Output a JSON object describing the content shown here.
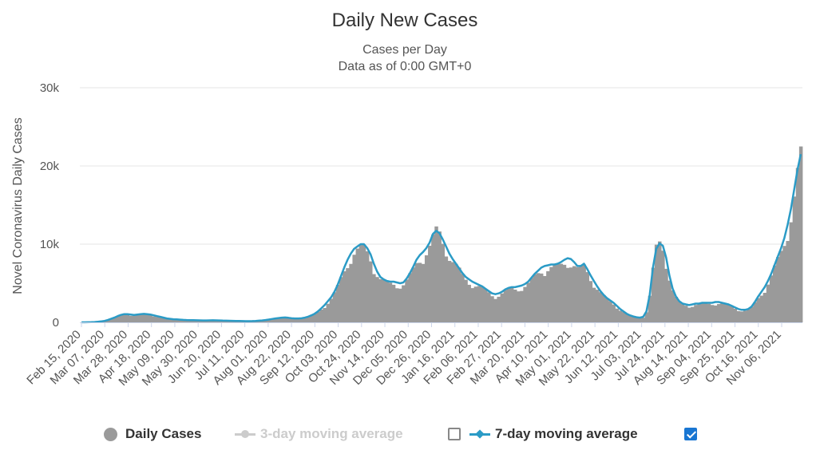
{
  "chart_data": {
    "type": "bar",
    "title": "Daily New Cases",
    "subtitle": "Cases per Day",
    "subtitle2": "Data as of 0:00 GMT+0",
    "ylabel": "Novel Coronavirus Daily Cases",
    "xlabel": "",
    "ylim": [
      0,
      30000
    ],
    "yticks": [
      0,
      10000,
      20000,
      30000
    ],
    "ytick_labels": [
      "0",
      "10k",
      "20k",
      "30k"
    ],
    "x_tick_labels": [
      "Feb 15, 2020",
      "Mar 07, 2020",
      "Mar 28, 2020",
      "Apr 18, 2020",
      "May 09, 2020",
      "May 30, 2020",
      "Jun 20, 2020",
      "Jul 11, 2020",
      "Aug 01, 2020",
      "Aug 22, 2020",
      "Sep 12, 2020",
      "Oct 03, 2020",
      "Oct 24, 2020",
      "Nov 14, 2020",
      "Dec 05, 2020",
      "Dec 26, 2020",
      "Jan 16, 2021",
      "Feb 06, 2021",
      "Feb 27, 2021",
      "Mar 20, 2021",
      "Apr 10, 2021",
      "May 01, 2021",
      "May 22, 2021",
      "Jun 12, 2021",
      "Jul 03, 2021",
      "Jul 24, 2021",
      "Aug 14, 2021",
      "Sep 04, 2021",
      "Sep 25, 2021",
      "Oct 16, 2021",
      "Nov 06, 2021"
    ],
    "grid": true,
    "series": [
      {
        "name": "Daily Cases",
        "type": "bar",
        "color": "#9a9a9a",
        "sampled_every_days": 3,
        "start_date": "Feb 15, 2020",
        "values": [
          5,
          5,
          10,
          20,
          40,
          80,
          120,
          180,
          300,
          450,
          600,
          800,
          950,
          1050,
          1050,
          1000,
          950,
          1000,
          1050,
          1080,
          1050,
          1000,
          900,
          800,
          700,
          600,
          500,
          450,
          400,
          380,
          350,
          320,
          300,
          290,
          280,
          270,
          260,
          250,
          250,
          260,
          270,
          260,
          240,
          220,
          210,
          200,
          190,
          180,
          170,
          160,
          150,
          150,
          160,
          180,
          210,
          250,
          300,
          360,
          430,
          500,
          550,
          600,
          620,
          580,
          520,
          500,
          500,
          520,
          600,
          720,
          900,
          1100,
          1400,
          1800,
          2200,
          2700,
          3200,
          3900,
          4800,
          5900,
          7000,
          8000,
          8800,
          9400,
          9700,
          10000,
          10000,
          9500,
          8700,
          7500,
          6500,
          5800,
          5500,
          5300,
          5200,
          5200,
          5100,
          5000,
          5100,
          5600,
          6300,
          7100,
          8000,
          8600,
          9000,
          9500,
          10200,
          11300,
          12300,
          12000,
          11000,
          10000,
          9000,
          8200,
          7600,
          7000,
          6300,
          5800,
          5500,
          5200,
          5000,
          4800,
          4600,
          4300,
          4000,
          3700,
          3600,
          3700,
          3900,
          4200,
          4400,
          4500,
          4500,
          4600,
          4700,
          4900,
          5200,
          5700,
          6200,
          6600,
          7000,
          7200,
          7300,
          7400,
          7400,
          7500,
          7700,
          8000,
          8200,
          8100,
          7700,
          7200,
          7200,
          7500,
          6800,
          6000,
          5300,
          4600,
          4000,
          3500,
          3100,
          2800,
          2500,
          2100,
          1700,
          1400,
          1100,
          900,
          750,
          650,
          600,
          700,
          1400,
          3500,
          7000,
          10000,
          10800,
          10200,
          8300,
          6000,
          4300,
          3300,
          2700,
          2400,
          2300,
          2200,
          2300,
          2400,
          2400,
          2500,
          2500,
          2500,
          2500,
          2600,
          2600,
          2500,
          2400,
          2300,
          2100,
          1900,
          1700,
          1600,
          1600,
          1700,
          2000,
          2600,
          3300,
          3900,
          4500,
          5300,
          6200,
          7300,
          8400,
          9500,
          10800,
          12500,
          14500,
          17000,
          20000,
          22500
        ]
      },
      {
        "name": "3-day moving average",
        "type": "line",
        "color": "#cccccc",
        "enabled": false
      },
      {
        "name": "7-day moving average",
        "type": "line",
        "color": "#2b9bc6",
        "enabled": true,
        "sampled_every_days": 3,
        "start_date": "Feb 15, 2020",
        "values": [
          5,
          5,
          10,
          20,
          40,
          80,
          120,
          180,
          300,
          450,
          600,
          800,
          950,
          1050,
          1050,
          1000,
          950,
          1000,
          1050,
          1080,
          1050,
          1000,
          900,
          800,
          700,
          600,
          500,
          450,
          400,
          380,
          350,
          320,
          300,
          290,
          280,
          270,
          260,
          250,
          250,
          260,
          270,
          260,
          240,
          220,
          210,
          200,
          190,
          180,
          170,
          160,
          150,
          150,
          160,
          180,
          210,
          250,
          300,
          360,
          430,
          500,
          550,
          600,
          620,
          580,
          520,
          500,
          500,
          520,
          600,
          720,
          900,
          1100,
          1400,
          1800,
          2200,
          2700,
          3200,
          3900,
          4800,
          5900,
          7000,
          8000,
          8800,
          9400,
          9700,
          10000,
          10000,
          9500,
          8700,
          7500,
          6500,
          5800,
          5500,
          5300,
          5200,
          5200,
          5100,
          5000,
          5100,
          5600,
          6300,
          7100,
          8000,
          8600,
          9000,
          9500,
          10200,
          11300,
          11700,
          11400,
          10600,
          9700,
          8800,
          8100,
          7500,
          6900,
          6300,
          5800,
          5500,
          5200,
          5000,
          4800,
          4600,
          4300,
          4000,
          3700,
          3600,
          3700,
          3900,
          4200,
          4400,
          4500,
          4500,
          4600,
          4700,
          4900,
          5200,
          5700,
          6200,
          6600,
          7000,
          7200,
          7300,
          7400,
          7400,
          7500,
          7700,
          8000,
          8200,
          8100,
          7700,
          7200,
          7200,
          7500,
          6800,
          6000,
          5300,
          4600,
          4000,
          3500,
          3100,
          2800,
          2500,
          2100,
          1700,
          1400,
          1100,
          900,
          750,
          650,
          600,
          700,
          1400,
          3500,
          7000,
          9400,
          10100,
          9800,
          8300,
          6000,
          4300,
          3300,
          2700,
          2400,
          2300,
          2200,
          2300,
          2400,
          2400,
          2500,
          2500,
          2500,
          2500,
          2600,
          2600,
          2500,
          2400,
          2300,
          2100,
          1900,
          1700,
          1600,
          1600,
          1700,
          2000,
          2600,
          3300,
          3900,
          4500,
          5300,
          6200,
          7300,
          8400,
          9500,
          10800,
          12500,
          14500,
          17000,
          19500,
          21500
        ]
      }
    ]
  },
  "legend": {
    "items": [
      {
        "label": "Daily Cases",
        "color": "#9a9a9a",
        "enabled": true
      },
      {
        "label": "3-day moving average",
        "color": "#cccccc",
        "enabled": false
      },
      {
        "label": "7-day moving average",
        "color": "#2b9bc6",
        "enabled": true
      }
    ],
    "checkbox_3day_checked": false,
    "checkbox_7day_checked": true,
    "disabled_text_color": "#cccccc",
    "enabled_text_color": "#333333"
  }
}
